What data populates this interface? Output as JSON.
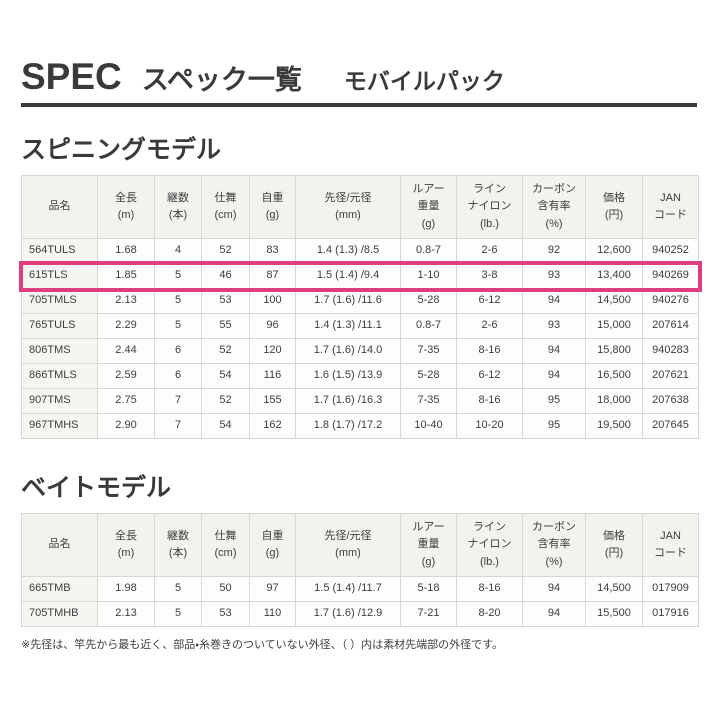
{
  "page": {
    "brand": "SPEC",
    "title": "スペック一覧",
    "subtitle": "モバイルパック",
    "footnote": "※先径は、竿先から最も近く、部品・糸巻きのついていない外径、（ ）内は素材先端部の外径です。"
  },
  "colors": {
    "highlight": "#de3d7f",
    "rule": "#3a3a3a",
    "header_bg": "#f4f2ee"
  },
  "columns": [
    [
      "品名"
    ],
    [
      "全長",
      "(m)"
    ],
    [
      "継数",
      "(本)"
    ],
    [
      "仕舞",
      "(cm)"
    ],
    [
      "自重",
      "(g)"
    ],
    [
      "先径/元径",
      "(mm)"
    ],
    [
      "ルアー",
      "重量",
      "(g)"
    ],
    [
      "ライン",
      "ナイロン",
      "(lb.)"
    ],
    [
      "カーボン",
      "含有率",
      "(%)"
    ],
    [
      "価格",
      "(円)"
    ],
    [
      "JAN",
      "コード"
    ]
  ],
  "sections": [
    {
      "heading": "スピニングモデル",
      "rows": [
        [
          "564TULS",
          "1.68",
          "4",
          "52",
          "83",
          "1.4 (1.3) /8.5",
          "0.8-7",
          "2-6",
          "92",
          "12,600",
          "940252"
        ],
        [
          "615TLS",
          "1.85",
          "5",
          "46",
          "87",
          "1.5 (1.4) /9.4",
          "1-10",
          "3-8",
          "93",
          "13,400",
          "940269"
        ],
        [
          "705TMLS",
          "2.13",
          "5",
          "53",
          "100",
          "1.7 (1.6) /11.6",
          "5-28",
          "6-12",
          "94",
          "14,500",
          "940276"
        ],
        [
          "765TULS",
          "2.29",
          "5",
          "55",
          "96",
          "1.4 (1.3) /11.1",
          "0.8-7",
          "2-6",
          "93",
          "15,000",
          "207614"
        ],
        [
          "806TMS",
          "2.44",
          "6",
          "52",
          "120",
          "1.7 (1.6) /14.0",
          "7-35",
          "8-16",
          "94",
          "15,800",
          "940283"
        ],
        [
          "866TMLS",
          "2.59",
          "6",
          "54",
          "116",
          "1.6 (1.5) /13.9",
          "5-28",
          "6-12",
          "94",
          "16,500",
          "207621"
        ],
        [
          "907TMS",
          "2.75",
          "7",
          "52",
          "155",
          "1.7 (1.6) /16.3",
          "7-35",
          "8-16",
          "95",
          "18,000",
          "207638"
        ],
        [
          "967TMHS",
          "2.90",
          "7",
          "54",
          "162",
          "1.8 (1.7) /17.2",
          "10-40",
          "10-20",
          "95",
          "19,500",
          "207645"
        ]
      ]
    },
    {
      "heading": "ベイトモデル",
      "rows": [
        [
          "665TMB",
          "1.98",
          "5",
          "50",
          "97",
          "1.5 (1.4) /11.7",
          "5-18",
          "8-16",
          "94",
          "14,500",
          "017909"
        ],
        [
          "705TMHB",
          "2.13",
          "5",
          "53",
          "110",
          "1.7 (1.6) /12.9",
          "7-21",
          "8-20",
          "94",
          "15,500",
          "017916"
        ]
      ]
    }
  ],
  "highlight": {
    "section": 0,
    "product": "615TLS"
  }
}
